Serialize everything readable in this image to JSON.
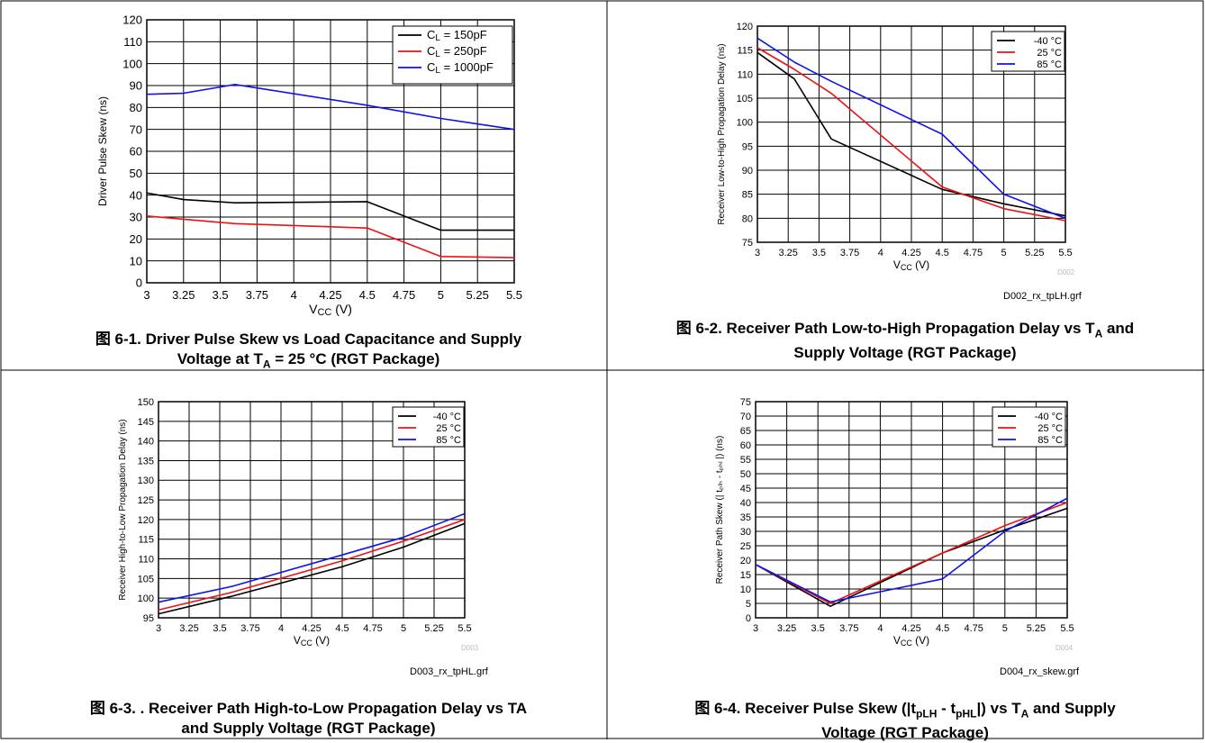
{
  "chart_data": [
    {
      "type": "line",
      "x": [
        3,
        3.25,
        3.6,
        4.5,
        5,
        5.5
      ],
      "series": [
        {
          "name": "Cₗ = 150pF",
          "name_base": "C",
          "name_sub": "L",
          "name_rest": " = 150pF",
          "color": "#000000",
          "y": [
            41,
            38,
            36.5,
            37,
            24,
            24
          ]
        },
        {
          "name": "Cₗ = 250pF",
          "name_base": "C",
          "name_sub": "L",
          "name_rest": " = 250pF",
          "color": "#ee1111",
          "y": [
            30.5,
            29,
            27,
            25,
            12,
            11.5
          ]
        },
        {
          "name": "Cₗ = 1000pF",
          "name_base": "C",
          "name_sub": "L",
          "name_rest": " = 1000pF",
          "color": "#1111ee",
          "y": [
            86,
            86.5,
            90.5,
            81,
            75,
            70
          ]
        }
      ],
      "xlim": [
        3,
        5.5
      ],
      "ylim": [
        0,
        120
      ],
      "xticks": [
        "3",
        "3.25",
        "3.5",
        "3.75",
        "4",
        "4.25",
        "4.5",
        "4.75",
        "5",
        "5.25",
        "5.5"
      ],
      "yticks": [
        0,
        10,
        20,
        30,
        40,
        50,
        60,
        70,
        80,
        90,
        100,
        110,
        120
      ],
      "xlabel_base": "V",
      "xlabel_sub": "CC",
      "xlabel_rest": " (V)",
      "ylabel": "Driver Pulse Skew (ns)",
      "grid": true,
      "legend": "top-right",
      "code": "",
      "file": "",
      "caption_line1": "图 6-1. Driver Pulse Skew vs Load Capacitance and Supply",
      "caption_line2_a": "Voltage at T",
      "caption_line2_sub": "A",
      "caption_line2_b": " = 25 °C (RGT Package)"
    },
    {
      "type": "line",
      "x": [
        3,
        3.3,
        3.6,
        4.5,
        5,
        5.5
      ],
      "series": [
        {
          "name": "-40 °C",
          "color": "#000000",
          "y": [
            114.5,
            109,
            96.5,
            86,
            83,
            80.5
          ]
        },
        {
          "name": "25 °C",
          "color": "#ee1111",
          "y": [
            115.5,
            111,
            106,
            86.5,
            82,
            79.5
          ]
        },
        {
          "name": "85 °C",
          "color": "#1111ee",
          "y": [
            117.5,
            112.5,
            108.5,
            97.5,
            85,
            80
          ]
        }
      ],
      "xlim": [
        3,
        5.5
      ],
      "ylim": [
        75,
        120
      ],
      "xticks": [
        "3",
        "3.25",
        "3.5",
        "3.75",
        "4",
        "4.25",
        "4.5",
        "4.75",
        "5",
        "5.25",
        "5.5"
      ],
      "yticks": [
        75,
        80,
        85,
        90,
        95,
        100,
        105,
        110,
        115,
        120
      ],
      "xlabel_base": "V",
      "xlabel_sub": "CC",
      "xlabel_rest": " (V)",
      "ylabel": "Receiver Low-to-High Propagation Delay (ns)",
      "grid": true,
      "legend": "top-right",
      "code": "D002",
      "file": "D002_rx_tpLH.grf",
      "caption_line1_a": "图 6-2. Receiver Path Low-to-High Propagation Delay vs T",
      "caption_line1_sub": "A",
      "caption_line1_b": " and",
      "caption_line2": "Supply Voltage (RGT Package)"
    },
    {
      "type": "line",
      "x": [
        3,
        3.6,
        4.5,
        5,
        5.5
      ],
      "series": [
        {
          "name": "-40 °C",
          "color": "#000000",
          "y": [
            96,
            100.5,
            108,
            113,
            119
          ]
        },
        {
          "name": "25 °C",
          "color": "#ee1111",
          "y": [
            97,
            101.5,
            109.5,
            114.5,
            120
          ]
        },
        {
          "name": "85 °C",
          "color": "#1111ee",
          "y": [
            99,
            103,
            111,
            115.5,
            121.5
          ]
        }
      ],
      "xlim": [
        3,
        5.5
      ],
      "ylim": [
        95,
        150
      ],
      "xticks": [
        "3",
        "3.25",
        "3.5",
        "3.75",
        "4",
        "4.25",
        "4.5",
        "4.75",
        "5",
        "5.25",
        "5.5"
      ],
      "yticks": [
        95,
        100,
        105,
        110,
        115,
        120,
        125,
        130,
        135,
        140,
        145,
        150
      ],
      "xlabel_base": "V",
      "xlabel_sub": "CC",
      "xlabel_rest": " (V)",
      "ylabel": "Receiver High-to-Low Propagation Delay (ns)",
      "grid": true,
      "legend": "top-right",
      "code": "D003",
      "file": "D003_rx_tpHL.grf",
      "caption_line1": "图 6-3. . Receiver Path High-to-Low Propagation Delay vs TA",
      "caption_line2": "and Supply Voltage (RGT Package)"
    },
    {
      "type": "line",
      "x": [
        3,
        3.6,
        4.5,
        5,
        5.5
      ],
      "series": [
        {
          "name": "-40 °C",
          "color": "#000000",
          "y": [
            18.5,
            4,
            22.5,
            30.5,
            38
          ]
        },
        {
          "name": "25 °C",
          "color": "#ee1111",
          "y": [
            18.5,
            5,
            22.5,
            32,
            40
          ]
        },
        {
          "name": "85 °C",
          "color": "#1111ee",
          "y": [
            18.5,
            5.5,
            13.5,
            30,
            41.5
          ]
        }
      ],
      "xlim": [
        3,
        5.5
      ],
      "ylim": [
        0,
        75
      ],
      "xticks": [
        "3",
        "3.25",
        "3.5",
        "3.75",
        "4",
        "4.25",
        "4.5",
        "4.75",
        "5",
        "5.25",
        "5.5"
      ],
      "yticks": [
        0,
        5,
        10,
        15,
        20,
        25,
        30,
        35,
        40,
        45,
        50,
        55,
        60,
        65,
        70,
        75
      ],
      "xlabel_base": "V",
      "xlabel_sub": "CC",
      "xlabel_rest": " (V)",
      "ylabel": "Receiver Path Skew (| tₚₗₕ - tₚₕₗ |) (ns)",
      "grid": true,
      "legend": "top-right",
      "code": "D004",
      "file": "D004_rx_skew.grf",
      "caption_line1_a": "图 6-4. Receiver Pulse Skew (|t",
      "caption_line1_sub1": "pLH",
      "caption_line1_b": " - t",
      "caption_line1_sub2": "pHL",
      "caption_line1_c": "|) vs T",
      "caption_line1_sub3": "A",
      "caption_line1_d": " and Supply",
      "caption_line2": "Voltage (RGT Package)"
    }
  ]
}
